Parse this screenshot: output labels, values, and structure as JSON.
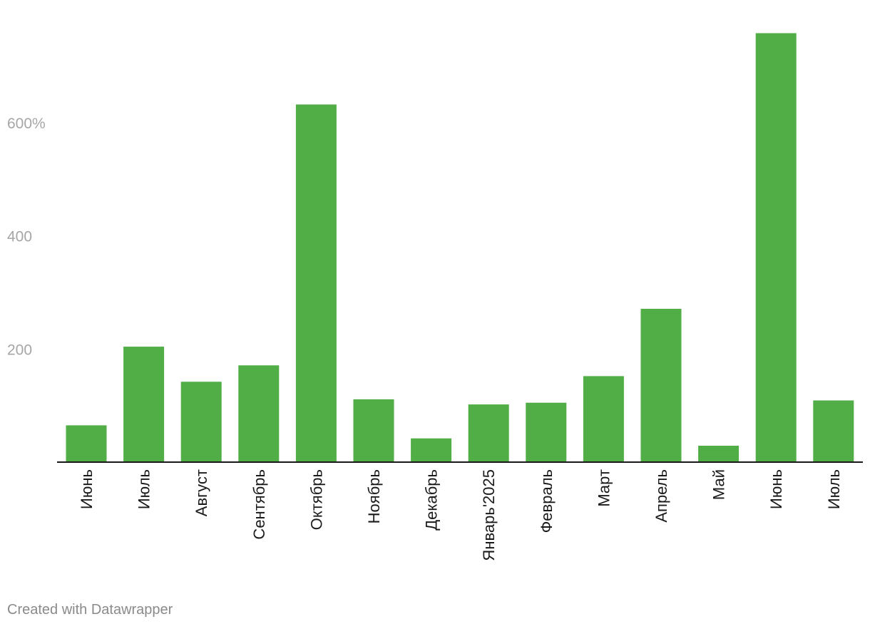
{
  "chart_data": {
    "type": "bar",
    "categories": [
      "Июнь",
      "Июль",
      "Август",
      "Сентябрь",
      "Октябрь",
      "Ноябрь",
      "Декабрь",
      "Январь'2025",
      "Февраль",
      "Март",
      "Апрель",
      "Май",
      "Июнь",
      "Июль"
    ],
    "values": [
      65,
      204,
      142,
      171,
      632,
      111,
      42,
      102,
      105,
      152,
      271,
      29,
      758,
      109
    ],
    "title": "",
    "xlabel": "",
    "ylabel": "",
    "ylim": [
      0,
      780
    ],
    "yticks": [
      200,
      400,
      600
    ],
    "ytick_labels": [
      "200",
      "400",
      "600%"
    ],
    "grid": false,
    "legend": "none",
    "bar_color": "#51ae47",
    "axis_color": "#1a1a1a"
  },
  "footer": {
    "credit": "Created with Datawrapper"
  }
}
